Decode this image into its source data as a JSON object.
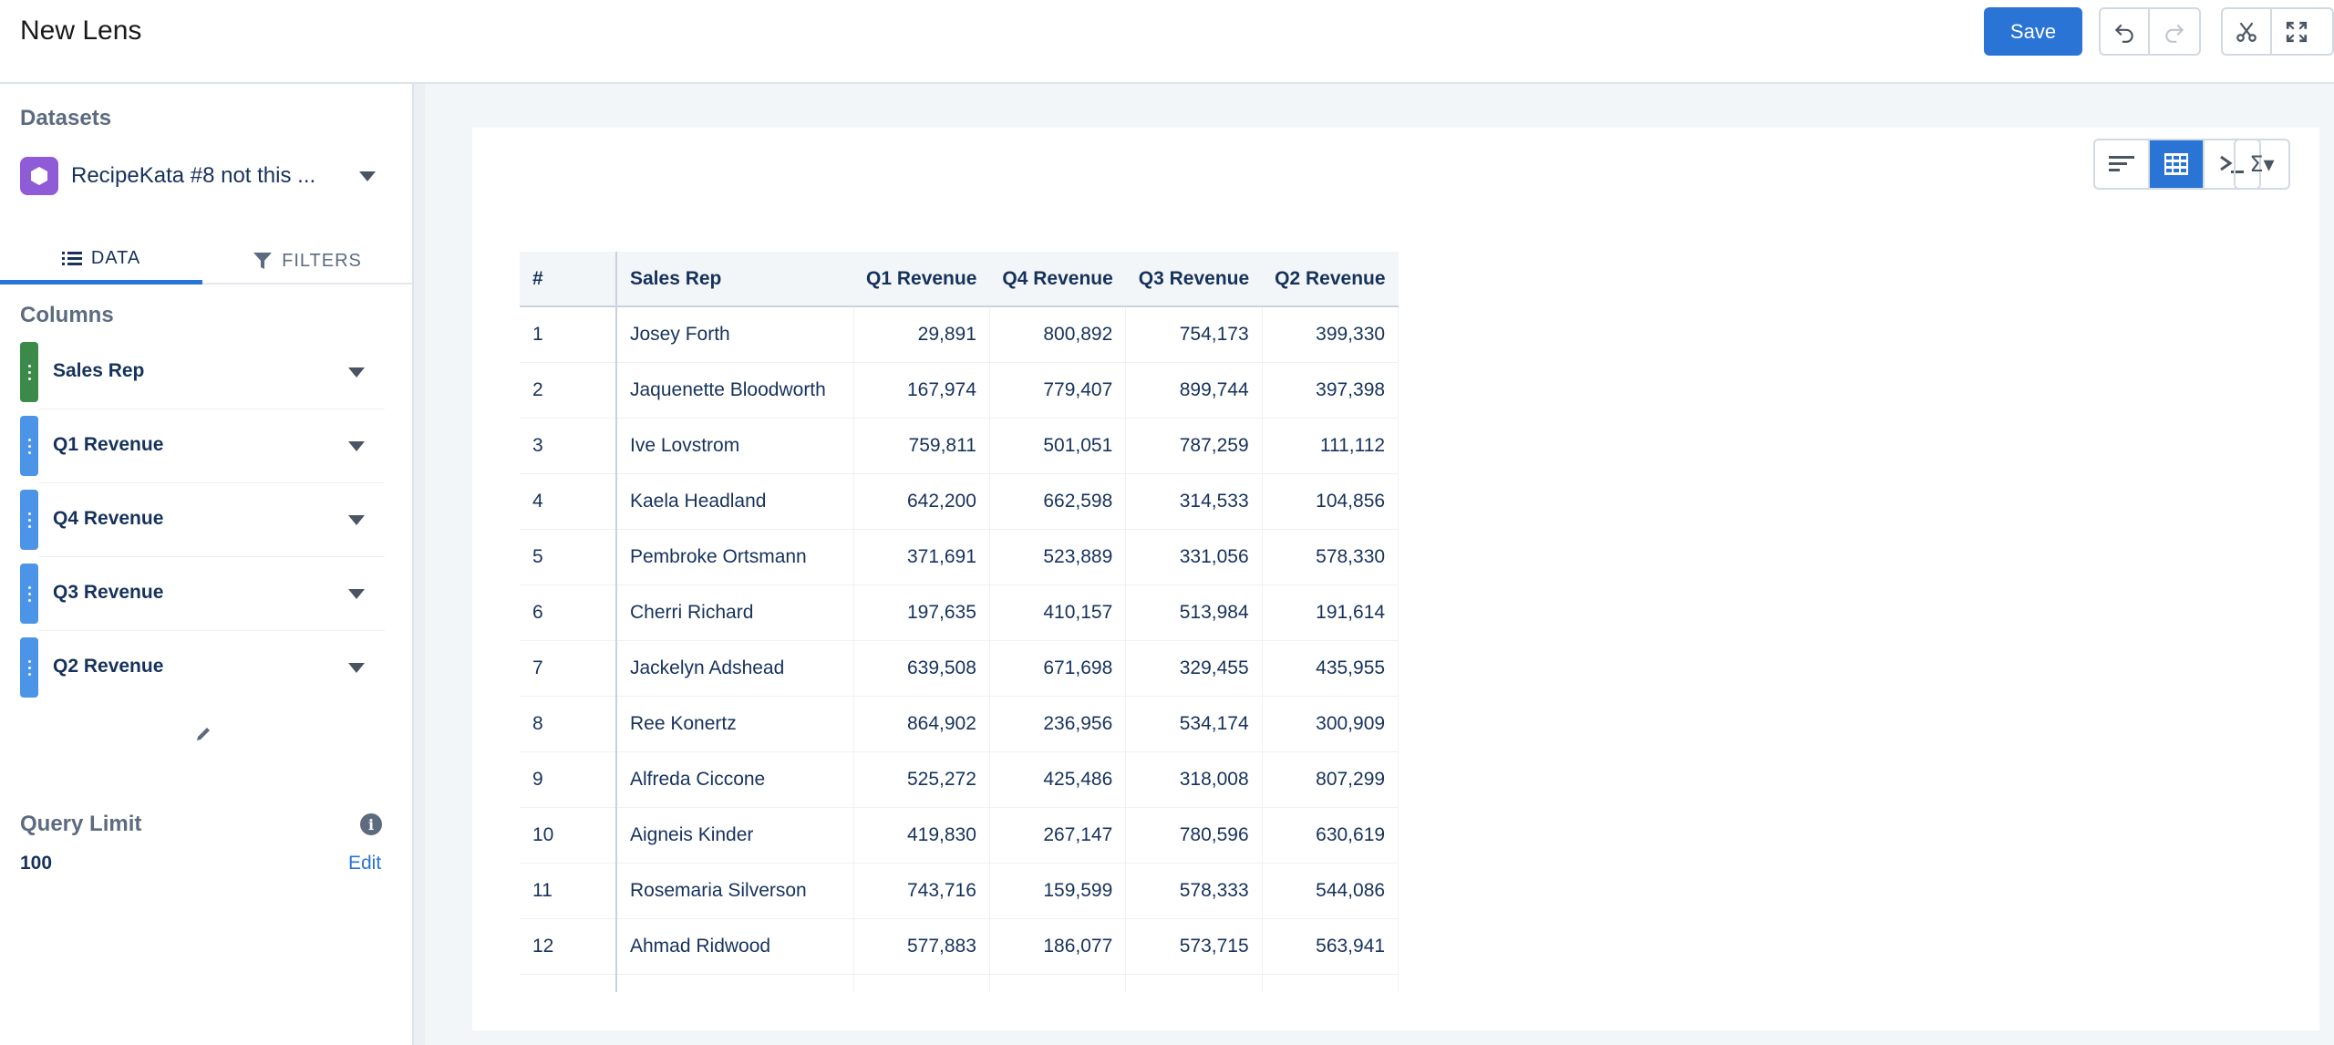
{
  "header": {
    "title": "New Lens",
    "save_label": "Save"
  },
  "sidebar": {
    "datasets_heading": "Datasets",
    "dataset_name": "RecipeKata #8 not this ...",
    "tabs": [
      {
        "label": "DATA",
        "icon": "list-icon",
        "active": true
      },
      {
        "label": "FILTERS",
        "icon": "filter-icon",
        "active": false
      }
    ],
    "columns_heading": "Columns",
    "columns": [
      {
        "label": "Sales Rep",
        "color": "#3c8a4a"
      },
      {
        "label": "Q1 Revenue",
        "color": "#4c94e8"
      },
      {
        "label": "Q4 Revenue",
        "color": "#4c94e8"
      },
      {
        "label": "Q3 Revenue",
        "color": "#4c94e8"
      },
      {
        "label": "Q2 Revenue",
        "color": "#4c94e8"
      }
    ],
    "query_limit_heading": "Query Limit",
    "query_limit_value": "100",
    "query_limit_edit": "Edit"
  },
  "table": {
    "headers": [
      "#",
      "Sales Rep",
      "Q1 Revenue",
      "Q4 Revenue",
      "Q3 Revenue",
      "Q2 Revenue"
    ],
    "rows": [
      [
        "1",
        "Josey Forth",
        "29,891",
        "800,892",
        "754,173",
        "399,330"
      ],
      [
        "2",
        "Jaquenette Bloodworth",
        "167,974",
        "779,407",
        "899,744",
        "397,398"
      ],
      [
        "3",
        "Ive Lovstrom",
        "759,811",
        "501,051",
        "787,259",
        "111,112"
      ],
      [
        "4",
        "Kaela Headland",
        "642,200",
        "662,598",
        "314,533",
        "104,856"
      ],
      [
        "5",
        "Pembroke Ortsmann",
        "371,691",
        "523,889",
        "331,056",
        "578,330"
      ],
      [
        "6",
        "Cherri Richard",
        "197,635",
        "410,157",
        "513,984",
        "191,614"
      ],
      [
        "7",
        "Jackelyn Adshead",
        "639,508",
        "671,698",
        "329,455",
        "435,955"
      ],
      [
        "8",
        "Ree Konertz",
        "864,902",
        "236,956",
        "534,174",
        "300,909"
      ],
      [
        "9",
        "Alfreda Ciccone",
        "525,272",
        "425,486",
        "318,008",
        "807,299"
      ],
      [
        "10",
        "Aigneis Kinder",
        "419,830",
        "267,147",
        "780,596",
        "630,619"
      ],
      [
        "11",
        "Rosemaria Silverson",
        "743,716",
        "159,599",
        "578,333",
        "544,086"
      ],
      [
        "12",
        "Ahmad Ridwood",
        "577,883",
        "186,077",
        "573,715",
        "563,941"
      ]
    ]
  }
}
